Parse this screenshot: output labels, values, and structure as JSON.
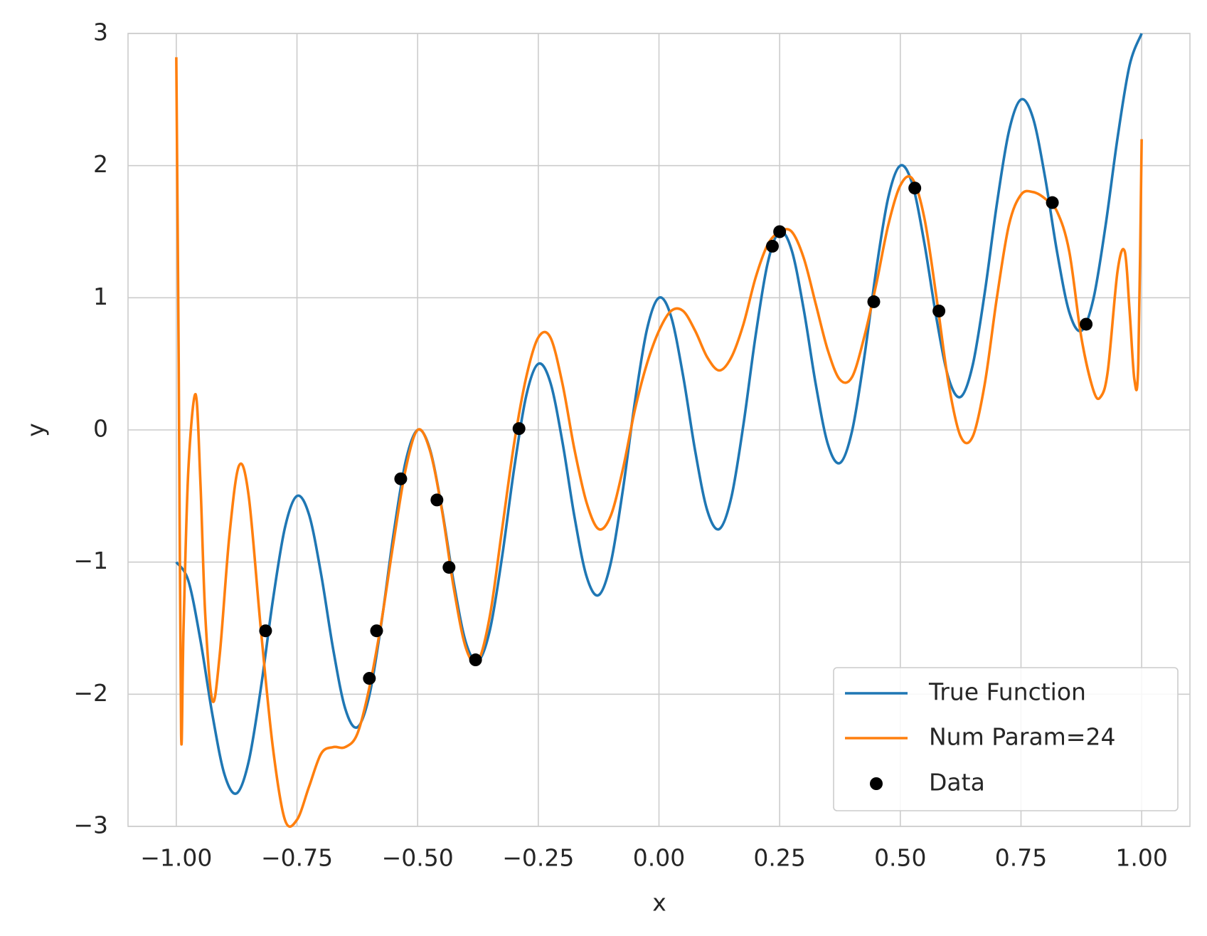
{
  "chart_data": {
    "type": "line",
    "xlabel": "x",
    "ylabel": "y",
    "xlim": [
      -1.1,
      1.1
    ],
    "ylim": [
      -3,
      3
    ],
    "xticks": [
      {
        "value": -1,
        "label": "−1.00"
      },
      {
        "value": -0.75,
        "label": "−0.75"
      },
      {
        "value": -0.5,
        "label": "−0.50"
      },
      {
        "value": -0.25,
        "label": "−0.25"
      },
      {
        "value": 0,
        "label": "0.00"
      },
      {
        "value": 0.25,
        "label": "0.25"
      },
      {
        "value": 0.5,
        "label": "0.50"
      },
      {
        "value": 0.75,
        "label": "0.75"
      },
      {
        "value": 1,
        "label": "1.00"
      }
    ],
    "yticks": [
      {
        "value": -3,
        "label": "−3"
      },
      {
        "value": -2,
        "label": "−2"
      },
      {
        "value": -1,
        "label": "−1"
      },
      0,
      1,
      2,
      3
    ],
    "grid": true,
    "legend": "lower right",
    "series": [
      {
        "name": "True Function",
        "color": "#1f77b4",
        "x": [
          -1,
          -0.975,
          -0.95,
          -0.925,
          -0.9,
          -0.875,
          -0.85,
          -0.825,
          -0.8,
          -0.775,
          -0.75,
          -0.725,
          -0.7,
          -0.675,
          -0.65,
          -0.625,
          -0.6,
          -0.575,
          -0.55,
          -0.525,
          -0.5,
          -0.475,
          -0.45,
          -0.425,
          -0.4,
          -0.375,
          -0.35,
          -0.325,
          -0.3,
          -0.275,
          -0.25,
          -0.225,
          -0.2,
          -0.175,
          -0.15,
          -0.125,
          -0.1,
          -0.075,
          -0.05,
          -0.025,
          0,
          0.025,
          0.05,
          0.075,
          0.1,
          0.125,
          0.15,
          0.175,
          0.2,
          0.225,
          0.25,
          0.275,
          0.3,
          0.325,
          0.35,
          0.375,
          0.4,
          0.425,
          0.45,
          0.475,
          0.5,
          0.525,
          0.55,
          0.575,
          0.6,
          0.625,
          0.65,
          0.675,
          0.7,
          0.725,
          0.75,
          0.775,
          0.8,
          0.825,
          0.85,
          0.875,
          0.9,
          0.925,
          0.95,
          0.975,
          1
        ],
        "values": [
          -1,
          -1.141,
          -1.591,
          -2.159,
          -2.609,
          -2.75,
          -2.509,
          -1.959,
          -1.291,
          -0.741,
          -0.5,
          -0.641,
          -1.091,
          -1.659,
          -2.109,
          -2.25,
          -2.009,
          -1.459,
          -0.791,
          -0.241,
          0,
          -0.141,
          -0.591,
          -1.159,
          -1.609,
          -1.75,
          -1.509,
          -0.959,
          -0.291,
          0.259,
          0.5,
          0.359,
          -0.091,
          -0.659,
          -1.109,
          -1.25,
          -1.009,
          -0.459,
          0.209,
          0.759,
          1,
          0.859,
          0.409,
          -0.159,
          -0.609,
          -0.75,
          -0.509,
          0.041,
          0.709,
          1.259,
          1.5,
          1.359,
          0.909,
          0.341,
          -0.109,
          -0.25,
          -0.009,
          0.541,
          1.209,
          1.759,
          2,
          1.859,
          1.409,
          0.841,
          0.391,
          0.25,
          0.491,
          1.041,
          1.709,
          2.259,
          2.5,
          2.359,
          1.909,
          1.341,
          0.891,
          0.75,
          0.991,
          1.541,
          2.209,
          2.759,
          3
        ]
      },
      {
        "name": "Num Param=24",
        "color": "#ff7f0e",
        "x": [
          -1,
          -0.995,
          -0.99,
          -0.985,
          -0.975,
          -0.96,
          -0.95,
          -0.94,
          -0.925,
          -0.91,
          -0.89,
          -0.87,
          -0.85,
          -0.825,
          -0.8,
          -0.775,
          -0.75,
          -0.725,
          -0.7,
          -0.675,
          -0.65,
          -0.625,
          -0.6,
          -0.575,
          -0.55,
          -0.525,
          -0.5,
          -0.475,
          -0.45,
          -0.425,
          -0.4,
          -0.375,
          -0.35,
          -0.325,
          -0.3,
          -0.275,
          -0.25,
          -0.225,
          -0.2,
          -0.175,
          -0.15,
          -0.125,
          -0.1,
          -0.075,
          -0.05,
          -0.025,
          0,
          0.025,
          0.05,
          0.075,
          0.1,
          0.125,
          0.15,
          0.175,
          0.2,
          0.225,
          0.25,
          0.275,
          0.3,
          0.325,
          0.35,
          0.375,
          0.4,
          0.425,
          0.45,
          0.475,
          0.5,
          0.525,
          0.55,
          0.575,
          0.6,
          0.625,
          0.65,
          0.675,
          0.7,
          0.725,
          0.75,
          0.775,
          0.8,
          0.825,
          0.85,
          0.875,
          0.9,
          0.915,
          0.93,
          0.95,
          0.965,
          0.975,
          0.985,
          0.993,
          1
        ],
        "values": [
          2.82,
          0.5,
          -2.3,
          -1.5,
          -0.3,
          0.27,
          -0.4,
          -1.4,
          -2.05,
          -1.7,
          -0.8,
          -0.27,
          -0.5,
          -1.5,
          -2.4,
          -2.95,
          -2.95,
          -2.7,
          -2.45,
          -2.4,
          -2.4,
          -2.3,
          -1.95,
          -1.45,
          -0.85,
          -0.3,
          0,
          -0.15,
          -0.6,
          -1.2,
          -1.65,
          -1.75,
          -1.4,
          -0.75,
          -0.1,
          0.4,
          0.7,
          0.7,
          0.35,
          -0.15,
          -0.55,
          -0.75,
          -0.65,
          -0.3,
          0.15,
          0.5,
          0.75,
          0.9,
          0.9,
          0.75,
          0.55,
          0.45,
          0.55,
          0.8,
          1.15,
          1.4,
          1.5,
          1.5,
          1.3,
          0.95,
          0.6,
          0.38,
          0.4,
          0.7,
          1.1,
          1.55,
          1.85,
          1.9,
          1.6,
          1,
          0.35,
          -0.05,
          -0.05,
          0.35,
          1,
          1.55,
          1.78,
          1.8,
          1.75,
          1.65,
          1.35,
          0.7,
          0.3,
          0.25,
          0.45,
          1.2,
          1.35,
          0.9,
          0.38,
          0.5,
          2.2
        ]
      }
    ],
    "scatter": {
      "name": "Data",
      "color": "#000000",
      "x": [
        -0.815,
        -0.6,
        -0.585,
        -0.535,
        -0.46,
        -0.435,
        -0.38,
        -0.29,
        0.235,
        0.25,
        0.445,
        0.53,
        0.58,
        0.815,
        0.885
      ],
      "y": [
        -1.52,
        -1.88,
        -1.52,
        -0.37,
        -0.53,
        -1.04,
        -1.74,
        0.01,
        1.39,
        1.5,
        0.97,
        1.83,
        0.9,
        1.72,
        0.8
      ]
    }
  }
}
